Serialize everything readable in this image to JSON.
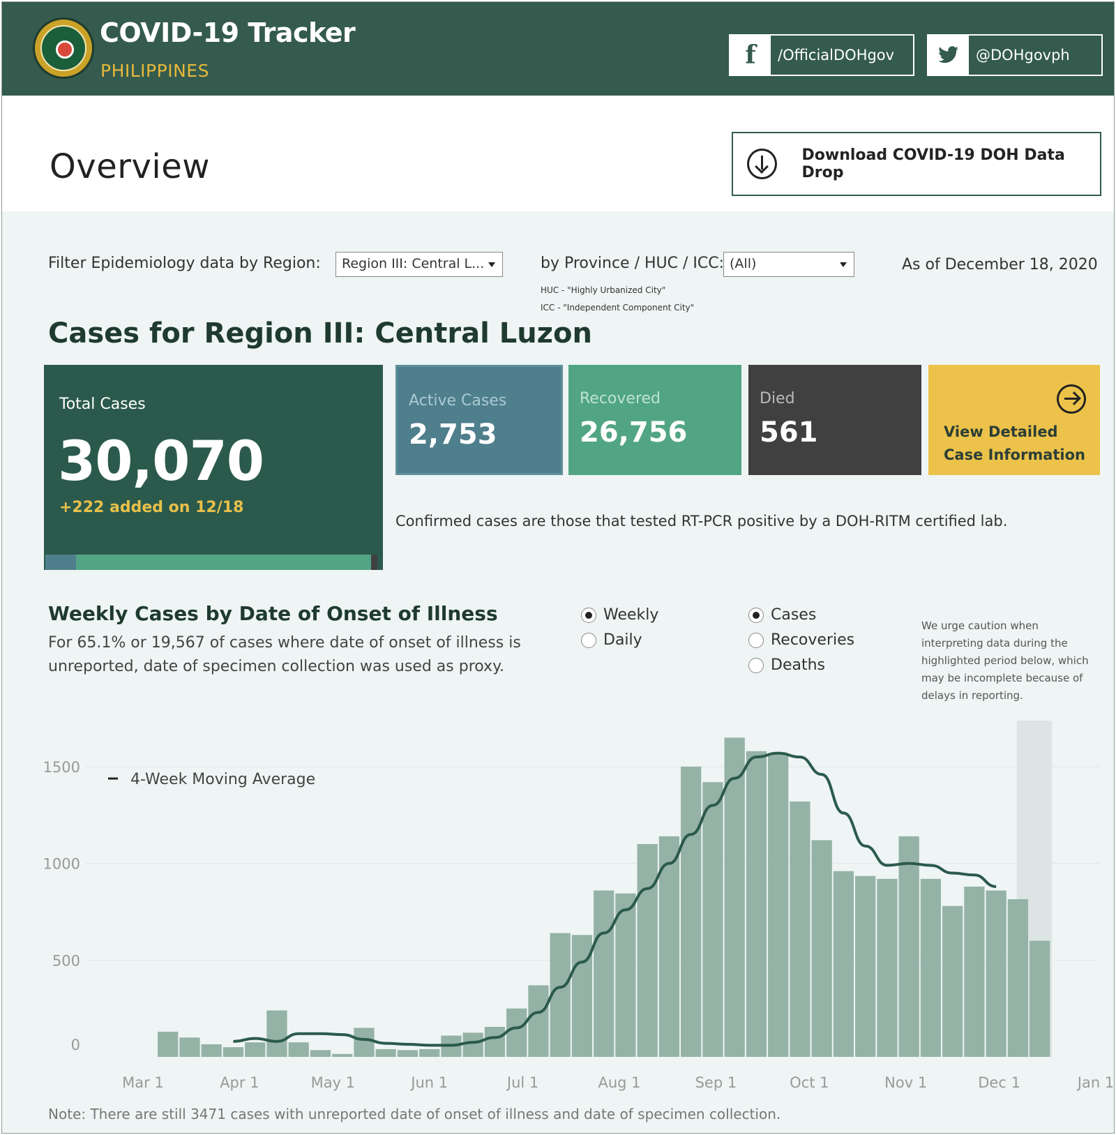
{
  "header": {
    "title": "COVID-19 Tracker",
    "subtitle": "PHILIPPINES",
    "facebook_label": "/OfficialDOHgov",
    "twitter_label": "@DOHgovph"
  },
  "overview": {
    "title": "Overview",
    "download_label": "Download COVID-19 DOH Data Drop"
  },
  "filters": {
    "region_label": "Filter Epidemiology data by Region:",
    "region_value": "Region III: Central L...",
    "province_label": "by Province / HUC / ICC:",
    "province_value": "(All)",
    "as_of": "As of December 18, 2020",
    "huc_note": "HUC - \"Highly Urbanized City\"",
    "icc_note": "ICC - \"Independent Component City\""
  },
  "cases_title": "Cases for Region III: Central Luzon",
  "kpis": {
    "total_label": "Total Cases",
    "total_value": "30,070",
    "total_added": "+222 added on 12/18",
    "active_label": "Active Cases",
    "active_value": "2,753",
    "recovered_label": "Recovered",
    "recovered_value": "26,756",
    "died_label": "Died",
    "died_value": "561",
    "detail_label": "View Detailed Case Information",
    "confirmed_note": "Confirmed cases are those that tested RT-PCR positive by a DOH-RITM certified lab.",
    "bar_colors": {
      "active": "#4f7e8c",
      "recovered": "#52a584",
      "died": "#404040"
    }
  },
  "weekly": {
    "title": "Weekly Cases by Date of Onset of Illness",
    "subtitle": "For 65.1% or 19,567 of cases where date of onset of illness is unreported, date of specimen collection was used as proxy.",
    "period_options": [
      {
        "label": "Weekly",
        "selected": true
      },
      {
        "label": "Daily",
        "selected": false
      }
    ],
    "metric_options": [
      {
        "label": "Cases",
        "selected": true
      },
      {
        "label": "Recoveries",
        "selected": false
      },
      {
        "label": "Deaths",
        "selected": false
      }
    ],
    "caution": "We urge caution when interpreting data during the highlighted period below, which may be incomplete because of delays in reporting.",
    "footnote": "Note: There are still 3471 cases with unreported date of onset of illness and date of specimen collection."
  },
  "chart_data": {
    "type": "bar",
    "title": "Weekly Cases by Date of Onset of Illness",
    "x_ticks": [
      "Mar 1",
      "Apr 1",
      "May 1",
      "Jun 1",
      "Jul 1",
      "Aug 1",
      "Sep 1",
      "Oct 1",
      "Nov 1",
      "Dec 1",
      "Jan 1"
    ],
    "y_ticks": [
      0,
      500,
      1000,
      1500
    ],
    "ylim": [
      0,
      1700
    ],
    "grid": true,
    "legend": {
      "label": "4-Week Moving Average",
      "placement": "top-left"
    },
    "bar_color": "#95b2a6",
    "line_color": "#2b5a4c",
    "highlight_color": "#dde5e4",
    "highlighted_weeks": "last two weeks",
    "series": [
      {
        "name": "Weekly cases",
        "type": "bar",
        "x": [
          "2020-03-09",
          "2020-03-16",
          "2020-03-23",
          "2020-03-30",
          "2020-04-06",
          "2020-04-13",
          "2020-04-20",
          "2020-04-27",
          "2020-05-04",
          "2020-05-11",
          "2020-05-18",
          "2020-05-25",
          "2020-06-01",
          "2020-06-08",
          "2020-06-15",
          "2020-06-22",
          "2020-06-29",
          "2020-07-06",
          "2020-07-13",
          "2020-07-20",
          "2020-07-27",
          "2020-08-03",
          "2020-08-10",
          "2020-08-17",
          "2020-08-24",
          "2020-08-31",
          "2020-09-07",
          "2020-09-14",
          "2020-09-21",
          "2020-09-28",
          "2020-10-05",
          "2020-10-12",
          "2020-10-19",
          "2020-10-26",
          "2020-11-02",
          "2020-11-09",
          "2020-11-16",
          "2020-11-23",
          "2020-11-30",
          "2020-12-07",
          "2020-12-14"
        ],
        "values": [
          130,
          100,
          65,
          50,
          75,
          240,
          75,
          35,
          15,
          150,
          40,
          35,
          40,
          110,
          125,
          155,
          250,
          370,
          640,
          630,
          860,
          845,
          1100,
          1140,
          1500,
          1420,
          1650,
          1580,
          1570,
          1320,
          1120,
          960,
          935,
          920,
          1140,
          920,
          780,
          880,
          860,
          815,
          600
        ]
      },
      {
        "name": "4-Week Moving Average",
        "type": "line",
        "x": [
          "2020-03-30",
          "2020-04-06",
          "2020-04-13",
          "2020-04-20",
          "2020-04-27",
          "2020-05-04",
          "2020-05-11",
          "2020-05-18",
          "2020-05-25",
          "2020-06-01",
          "2020-06-08",
          "2020-06-15",
          "2020-06-22",
          "2020-06-29",
          "2020-07-06",
          "2020-07-13",
          "2020-07-20",
          "2020-07-27",
          "2020-08-03",
          "2020-08-10",
          "2020-08-17",
          "2020-08-24",
          "2020-08-31",
          "2020-09-07",
          "2020-09-14",
          "2020-09-21",
          "2020-09-28",
          "2020-10-05",
          "2020-10-12",
          "2020-10-19",
          "2020-10-26",
          "2020-11-02",
          "2020-11-09",
          "2020-11-16",
          "2020-11-23",
          "2020-11-30"
        ],
        "values": [
          80,
          95,
          80,
          120,
          120,
          115,
          90,
          70,
          65,
          60,
          60,
          75,
          100,
          150,
          230,
          360,
          490,
          640,
          760,
          870,
          1000,
          1150,
          1300,
          1440,
          1550,
          1570,
          1550,
          1460,
          1260,
          1090,
          990,
          1000,
          990,
          950,
          940,
          880
        ]
      }
    ]
  }
}
